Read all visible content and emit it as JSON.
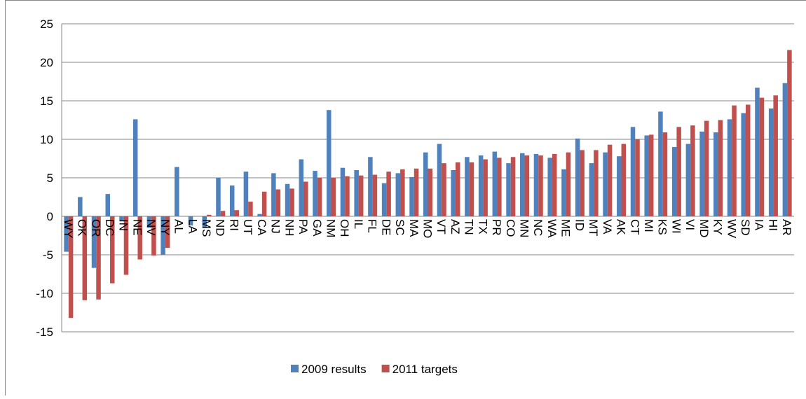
{
  "chart_data": {
    "type": "bar",
    "categories": [
      "WY",
      "OK",
      "OR",
      "DC",
      "IN",
      "NE",
      "NV",
      "NY",
      "AL",
      "LA",
      "MS",
      "ND",
      "RI",
      "UT",
      "CA",
      "NJ",
      "NH",
      "PA",
      "GA",
      "NM",
      "OH",
      "IL",
      "FL",
      "DE",
      "SC",
      "MA",
      "MO",
      "VT",
      "AZ",
      "TN",
      "TX",
      "PR",
      "CO",
      "MN",
      "NC",
      "WA",
      "ME",
      "ID",
      "MT",
      "VA",
      "AK",
      "CT",
      "MI",
      "KS",
      "WI",
      "VI",
      "MD",
      "KY",
      "WV",
      "SD",
      "IA",
      "HI",
      "AR"
    ],
    "series": [
      {
        "name": "2009 results",
        "color": "#4f81bd",
        "values": [
          -4.6,
          2.5,
          -6.7,
          2.9,
          -0.5,
          12.6,
          -1.5,
          -5.0,
          6.4,
          -1.2,
          -1.5,
          5.0,
          4.0,
          5.8,
          0.3,
          5.6,
          4.2,
          7.4,
          5.9,
          13.8,
          6.3,
          6.0,
          7.7,
          4.3,
          5.6,
          5.1,
          8.3,
          9.4,
          6.0,
          7.7,
          7.9,
          8.4,
          6.9,
          8.2,
          8.1,
          7.6,
          6.1,
          10.1,
          6.9,
          8.3,
          7.8,
          11.6,
          10.5,
          13.6,
          9.0,
          9.4,
          11.0,
          10.9,
          12.6,
          13.4,
          16.7,
          14.0,
          17.3
        ]
      },
      {
        "name": "2011 targets",
        "color": "#c0504d",
        "values": [
          -13.2,
          -10.9,
          -10.8,
          -8.7,
          -7.6,
          -5.6,
          -5.1,
          -4.1,
          null,
          null,
          0.2,
          0.7,
          0.8,
          1.9,
          3.2,
          3.5,
          3.6,
          4.5,
          5.0,
          5.0,
          5.2,
          5.3,
          5.4,
          5.8,
          6.1,
          6.2,
          6.2,
          6.9,
          7.0,
          7.0,
          7.4,
          7.6,
          7.7,
          7.9,
          7.9,
          8.1,
          8.3,
          8.6,
          8.6,
          9.3,
          9.4,
          10.0,
          10.6,
          10.9,
          11.6,
          11.8,
          12.4,
          12.5,
          14.4,
          14.5,
          15.4,
          15.7,
          21.6
        ]
      }
    ],
    "ylim": [
      -15,
      25
    ],
    "yticks": [
      -15,
      -10,
      -5,
      0,
      5,
      10,
      15,
      20,
      25
    ],
    "grid": true,
    "legend": "bottom"
  }
}
